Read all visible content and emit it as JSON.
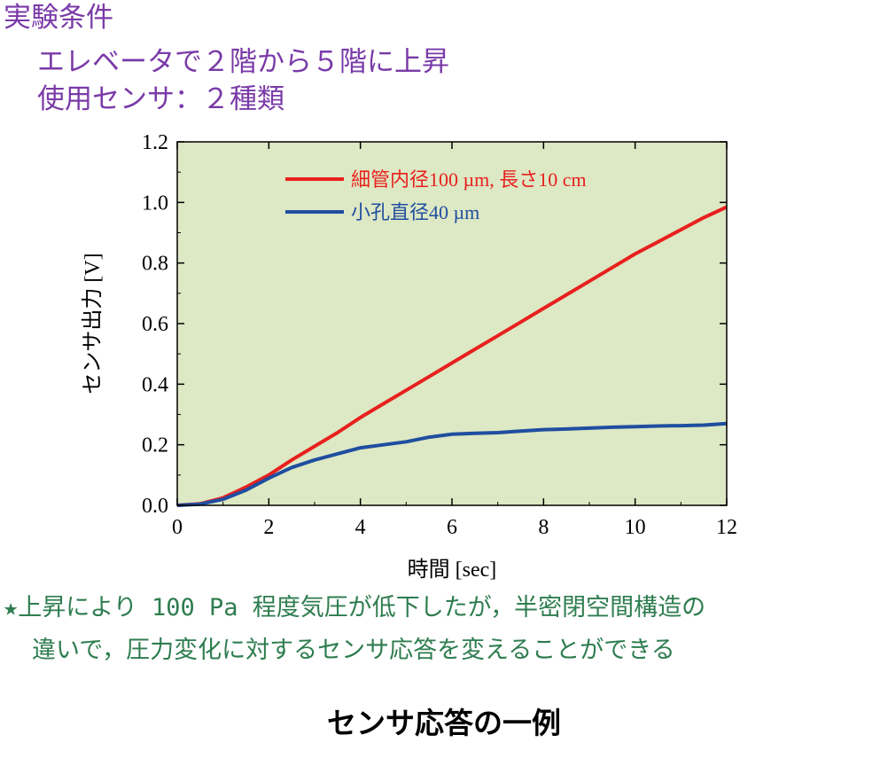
{
  "header": {
    "title": "実験条件",
    "line1": "エレベータで２階から５階に上昇",
    "line2": "使用センサ：２種類",
    "color": "#7a3aa8"
  },
  "chart_data": {
    "type": "line",
    "xlabel": "時間 [sec]",
    "ylabel": "センサ出力 [V]",
    "xlim": [
      0,
      12
    ],
    "ylim": [
      0.0,
      1.2
    ],
    "x_ticks": [
      "0",
      "2",
      "4",
      "6",
      "8",
      "10",
      "12"
    ],
    "y_ticks": [
      "0.0",
      "0.2",
      "0.4",
      "0.6",
      "0.8",
      "1.0",
      "1.2"
    ],
    "grid": false,
    "legend_position": "top",
    "plot_background": "#dde8c4",
    "series": [
      {
        "name": "細管内径100 µm,  長さ10 cm",
        "color": "#e8201e",
        "x": [
          0,
          0.5,
          1,
          1.5,
          2,
          2.5,
          3,
          3.5,
          4,
          4.5,
          5,
          5.5,
          6,
          6.5,
          7,
          7.5,
          8,
          8.5,
          9,
          9.5,
          10,
          10.5,
          11,
          11.5,
          12
        ],
        "y": [
          0.0,
          0.005,
          0.025,
          0.06,
          0.1,
          0.15,
          0.195,
          0.24,
          0.29,
          0.335,
          0.38,
          0.425,
          0.47,
          0.515,
          0.56,
          0.605,
          0.65,
          0.695,
          0.74,
          0.785,
          0.83,
          0.87,
          0.91,
          0.95,
          0.985
        ]
      },
      {
        "name": "小孔直径40 µm",
        "color": "#1f4ea0",
        "x": [
          0,
          0.5,
          1,
          1.5,
          2,
          2.5,
          3,
          3.5,
          4,
          4.5,
          5,
          5.5,
          6,
          6.5,
          7,
          7.5,
          8,
          8.5,
          9,
          9.5,
          10,
          10.5,
          11,
          11.5,
          12
        ],
        "y": [
          0.0,
          0.004,
          0.02,
          0.05,
          0.09,
          0.125,
          0.15,
          0.17,
          0.19,
          0.2,
          0.21,
          0.225,
          0.235,
          0.238,
          0.24,
          0.245,
          0.25,
          0.252,
          0.255,
          0.258,
          0.26,
          0.262,
          0.263,
          0.265,
          0.27
        ]
      }
    ]
  },
  "note": {
    "star": "★",
    "line1": "上昇により 100 Pa 程度気圧が低下したが，半密閉空間構造の",
    "line2": "違いで，圧力変化に対するセンサ応答を変えることができる",
    "color": "#2e7d4f"
  },
  "caption": "センサ応答の一例"
}
